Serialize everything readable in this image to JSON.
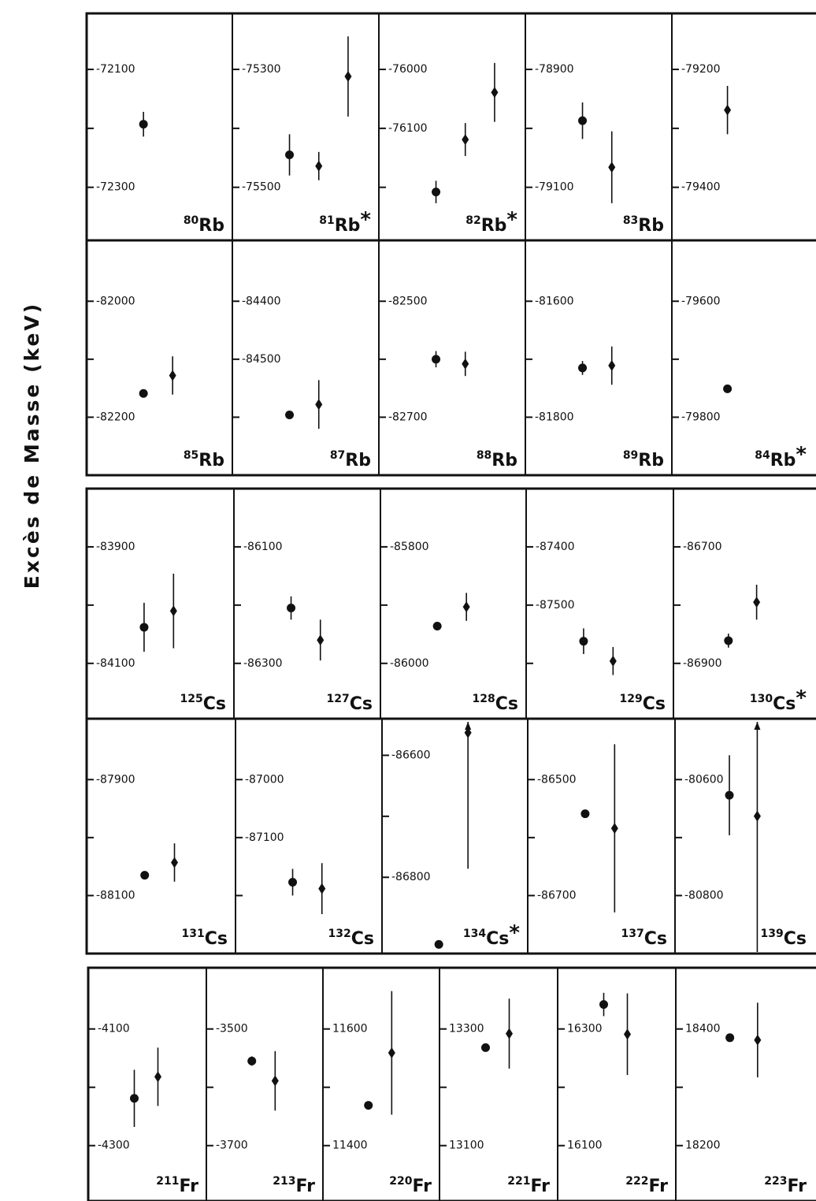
{
  "ylabel": "Excès de Masse (keV)",
  "chart_data": [
    {
      "type": "scatter",
      "label": {
        "mass": 80,
        "element": "Rb"
      },
      "ylim": [
        -72390,
        -72005
      ],
      "yticks": [
        -72100,
        -72300
      ],
      "minor_yticks": [
        -72200
      ],
      "points": [
        {
          "marker": "circle",
          "value": -72193,
          "error": 21
        }
      ]
    },
    {
      "type": "scatter",
      "label": {
        "mass": 81,
        "element": "Rb",
        "note": "*"
      },
      "ylim": [
        -75590,
        -75205
      ],
      "yticks": [
        -75300,
        -75500
      ],
      "minor_yticks": [
        -75400
      ],
      "points": [
        {
          "marker": "circle",
          "value": -75445,
          "error": 35
        },
        {
          "marker": "diamond",
          "value": -75464,
          "error": 24
        },
        {
          "marker": "diamond",
          "value": -75312,
          "error": 68
        }
      ]
    },
    {
      "type": "scatter",
      "label": {
        "mass": 82,
        "element": "Rb",
        "note": "*"
      },
      "ylim": [
        -76290,
        -75905
      ],
      "yticks": [
        -76000,
        -76100
      ],
      "minor_yticks": [
        -76200
      ],
      "points": [
        {
          "marker": "circle",
          "value": -76208,
          "error": 19
        },
        {
          "marker": "diamond",
          "value": -76119,
          "error": 28
        },
        {
          "marker": "diamond",
          "value": -76039,
          "error": 50
        }
      ]
    },
    {
      "type": "scatter",
      "label": {
        "mass": 83,
        "element": "Rb"
      },
      "ylim": [
        -79190,
        -78805
      ],
      "yticks": [
        -78900,
        -79100
      ],
      "minor_yticks": [
        -79000
      ],
      "points": [
        {
          "marker": "circle",
          "value": -78987,
          "error": 31
        },
        {
          "marker": "diamond",
          "value": -79066,
          "error": 61
        }
      ]
    },
    {
      "type": "scatter",
      "ylim": [
        -79490,
        -79105
      ],
      "yticks": [
        -79200,
        -79400
      ],
      "minor_yticks": [
        -79300
      ],
      "points": [
        {
          "marker": "diamond",
          "value": -79269,
          "error": 41
        }
      ]
    },
    {
      "type": "scatter",
      "label": {
        "mass": 85,
        "element": "Rb"
      },
      "ylim": [
        -82300,
        -81895
      ],
      "yticks": [
        -82000,
        -82200
      ],
      "minor_yticks": [
        -82100
      ],
      "points": [
        {
          "marker": "circle",
          "value": -82159
        },
        {
          "marker": "diamond",
          "value": -82128,
          "error": 33
        }
      ]
    },
    {
      "type": "scatter",
      "label": {
        "mass": 87,
        "element": "Rb"
      },
      "ylim": [
        -84700,
        -84295
      ],
      "yticks": [
        -84400,
        -84500
      ],
      "minor_yticks": [
        -84600
      ],
      "points": [
        {
          "marker": "circle",
          "value": -84596
        },
        {
          "marker": "diamond",
          "value": -84578,
          "error": 42
        }
      ]
    },
    {
      "type": "scatter",
      "label": {
        "mass": 88,
        "element": "Rb"
      },
      "ylim": [
        -82800,
        -82395
      ],
      "yticks": [
        -82500,
        -82700
      ],
      "minor_yticks": [
        -82600
      ],
      "points": [
        {
          "marker": "circle",
          "value": -82600,
          "error": 14
        },
        {
          "marker": "diamond",
          "value": -82608,
          "error": 21
        }
      ]
    },
    {
      "type": "scatter",
      "label": {
        "mass": 89,
        "element": "Rb"
      },
      "ylim": [
        -81900,
        -81495
      ],
      "yticks": [
        -81600,
        -81800
      ],
      "minor_yticks": [
        -81700
      ],
      "points": [
        {
          "marker": "circle",
          "value": -81715,
          "error": 12
        },
        {
          "marker": "diamond",
          "value": -81711,
          "error": 33
        }
      ]
    },
    {
      "type": "scatter",
      "label": {
        "mass": 84,
        "element": "Rb",
        "note": "*"
      },
      "ylim": [
        -79900,
        -79495
      ],
      "yticks": [
        -79600,
        -79800
      ],
      "minor_yticks": [
        -79700
      ],
      "points": [
        {
          "marker": "circle",
          "value": -79751
        }
      ]
    },
    {
      "type": "scatter",
      "label": {
        "mass": 125,
        "element": "Cs"
      },
      "ylim": [
        -84195,
        -83800
      ],
      "yticks": [
        -83900,
        -84100
      ],
      "minor_yticks": [
        -84000
      ],
      "points": [
        {
          "marker": "circle",
          "value": -84038,
          "error": 42
        },
        {
          "marker": "diamond",
          "value": -84010,
          "error": 64
        }
      ]
    },
    {
      "type": "scatter",
      "label": {
        "mass": 127,
        "element": "Cs"
      },
      "ylim": [
        -86395,
        -86000
      ],
      "yticks": [
        -86100,
        -86300
      ],
      "minor_yticks": [
        -86200
      ],
      "points": [
        {
          "marker": "circle",
          "value": -86205,
          "error": 20
        },
        {
          "marker": "diamond",
          "value": -86260,
          "error": 35
        }
      ]
    },
    {
      "type": "scatter",
      "label": {
        "mass": 128,
        "element": "Cs"
      },
      "ylim": [
        -86095,
        -85700
      ],
      "yticks": [
        -85800,
        -86000
      ],
      "minor_yticks": [
        -85900
      ],
      "points": [
        {
          "marker": "circle",
          "value": -85936
        },
        {
          "marker": "diamond",
          "value": -85903,
          "error": 24
        }
      ]
    },
    {
      "type": "scatter",
      "label": {
        "mass": 129,
        "element": "Cs"
      },
      "ylim": [
        -87695,
        -87300
      ],
      "yticks": [
        -87400,
        -87500
      ],
      "minor_yticks": [
        -87600
      ],
      "points": [
        {
          "marker": "circle",
          "value": -87562,
          "error": 22
        },
        {
          "marker": "diamond",
          "value": -87596,
          "error": 24
        }
      ]
    },
    {
      "type": "scatter",
      "label": {
        "mass": 130,
        "element": "Cs",
        "note": "*"
      },
      "ylim": [
        -86995,
        -86600
      ],
      "yticks": [
        -86700,
        -86900
      ],
      "minor_yticks": [
        -86800
      ],
      "points": [
        {
          "marker": "circle",
          "value": -86861,
          "error": 12
        },
        {
          "marker": "diamond",
          "value": -86795,
          "error": 30
        }
      ]
    },
    {
      "type": "scatter",
      "label": {
        "mass": 131,
        "element": "Cs"
      },
      "ylim": [
        -88200,
        -87795
      ],
      "yticks": [
        -87900,
        -88100
      ],
      "minor_yticks": [
        -88000
      ],
      "points": [
        {
          "marker": "circle",
          "value": -88065
        },
        {
          "marker": "diamond",
          "value": -88043,
          "error": 33
        }
      ]
    },
    {
      "type": "scatter",
      "label": {
        "mass": 132,
        "element": "Cs"
      },
      "ylim": [
        -87300,
        -86895
      ],
      "yticks": [
        -87000,
        -87100
      ],
      "minor_yticks": [
        -87200
      ],
      "points": [
        {
          "marker": "circle",
          "value": -87177,
          "error": 23
        },
        {
          "marker": "diamond",
          "value": -87188,
          "error": 44
        }
      ]
    },
    {
      "type": "scatter",
      "label": {
        "mass": 134,
        "element": "Cs",
        "note": "*"
      },
      "ylim": [
        -86925,
        -86540
      ],
      "yticks": [
        -86600,
        -86800
      ],
      "minor_yticks": [
        -86700
      ],
      "points": [
        {
          "marker": "circle",
          "value": -86910
        },
        {
          "marker": "diamond",
          "value": -86563,
          "error": 223
        }
      ]
    },
    {
      "type": "scatter",
      "label": {
        "mass": 137,
        "element": "Cs"
      },
      "ylim": [
        -86800,
        -86395
      ],
      "yticks": [
        -86500,
        -86700
      ],
      "minor_yticks": [
        -86600
      ],
      "points": [
        {
          "marker": "circle",
          "value": -86559
        },
        {
          "marker": "diamond",
          "value": -86584,
          "error": 145
        }
      ]
    },
    {
      "type": "scatter",
      "label": {
        "mass": 139,
        "element": "Cs"
      },
      "ylim": [
        -80900,
        -80495
      ],
      "yticks": [
        -80600,
        -80800
      ],
      "minor_yticks": [
        -80700
      ],
      "points": [
        {
          "marker": "circle",
          "value": -80627,
          "error": 69
        },
        {
          "marker": "diamond",
          "value": -80663,
          "error": 237
        }
      ]
    },
    {
      "type": "scatter",
      "label": {
        "mass": 211,
        "element": "Fr"
      },
      "ylim": [
        -4395,
        -3995
      ],
      "yticks": [
        -4100,
        -4300
      ],
      "minor_yticks": [
        -4200
      ],
      "points": [
        {
          "marker": "circle",
          "value": -4219,
          "error": 49
        },
        {
          "marker": "diamond",
          "value": -4182,
          "error": 50
        }
      ]
    },
    {
      "type": "scatter",
      "label": {
        "mass": 213,
        "element": "Fr"
      },
      "ylim": [
        -3795,
        -3395
      ],
      "yticks": [
        -3500,
        -3700
      ],
      "minor_yticks": [
        -3600
      ],
      "points": [
        {
          "marker": "circle",
          "value": -3555,
          "error": 8
        },
        {
          "marker": "diamond",
          "value": -3589,
          "error": 51
        }
      ]
    },
    {
      "type": "scatter",
      "label": {
        "mass": 220,
        "element": "Fr"
      },
      "ylim": [
        11305,
        11705
      ],
      "yticks": [
        11600,
        11400
      ],
      "minor_yticks": [
        11500
      ],
      "points": [
        {
          "marker": "circle",
          "value": 11469
        },
        {
          "marker": "diamond",
          "value": 11559,
          "error": 106
        }
      ]
    },
    {
      "type": "scatter",
      "label": {
        "mass": 221,
        "element": "Fr"
      },
      "ylim": [
        13005,
        13405
      ],
      "yticks": [
        13300,
        13100
      ],
      "minor_yticks": [
        13200
      ],
      "points": [
        {
          "marker": "circle",
          "value": 13268
        },
        {
          "marker": "diamond",
          "value": 13292,
          "error": 60
        }
      ]
    },
    {
      "type": "scatter",
      "label": {
        "mass": 222,
        "element": "Fr"
      },
      "ylim": [
        16005,
        16405
      ],
      "yticks": [
        16300,
        16100
      ],
      "minor_yticks": [
        16200
      ],
      "points": [
        {
          "marker": "circle",
          "value": 16342,
          "error": 20
        },
        {
          "marker": "diamond",
          "value": 16291,
          "error": 70
        }
      ]
    },
    {
      "type": "scatter",
      "label": {
        "mass": 223,
        "element": "Fr"
      },
      "ylim": [
        18105,
        18505
      ],
      "yticks": [
        18400,
        18200
      ],
      "minor_yticks": [
        18300
      ],
      "points": [
        {
          "marker": "circle",
          "value": 18385
        },
        {
          "marker": "diamond",
          "value": 18381,
          "error": 64
        }
      ]
    }
  ]
}
